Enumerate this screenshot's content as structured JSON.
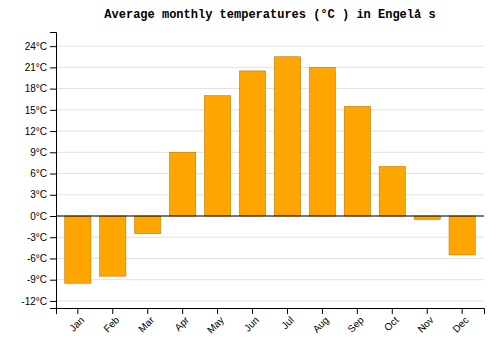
{
  "chart_data": {
    "type": "bar",
    "title": "Average monthly temperatures (°C ) in Engelå s",
    "categories": [
      "Jan",
      "Feb",
      "Mar",
      "Apr",
      "May",
      "Jun",
      "Jul",
      "Aug",
      "Sep",
      "Oct",
      "Nov",
      "Dec"
    ],
    "values": [
      -9.5,
      -8.5,
      -2.5,
      9.0,
      17.0,
      20.5,
      22.5,
      21.0,
      15.5,
      7.0,
      -0.5,
      -5.5
    ],
    "color": "#FFA500",
    "ylim": [
      -13,
      26
    ],
    "yticks": [
      {
        "value": -12,
        "label": "-12°C"
      },
      {
        "value": -9,
        "label": "-9°C"
      },
      {
        "value": -6,
        "label": "-6°C"
      },
      {
        "value": -3,
        "label": "-3°C"
      },
      {
        "value": 0,
        "label": "0°C"
      },
      {
        "value": 3,
        "label": "3°C"
      },
      {
        "value": 6,
        "label": "6°C"
      },
      {
        "value": 9,
        "label": "9°C"
      },
      {
        "value": 12,
        "label": "12°C"
      },
      {
        "value": 15,
        "label": "15°C"
      },
      {
        "value": 18,
        "label": "18°C"
      },
      {
        "value": 21,
        "label": "21°C"
      },
      {
        "value": 24,
        "label": "24°C"
      }
    ],
    "grid": true
  }
}
